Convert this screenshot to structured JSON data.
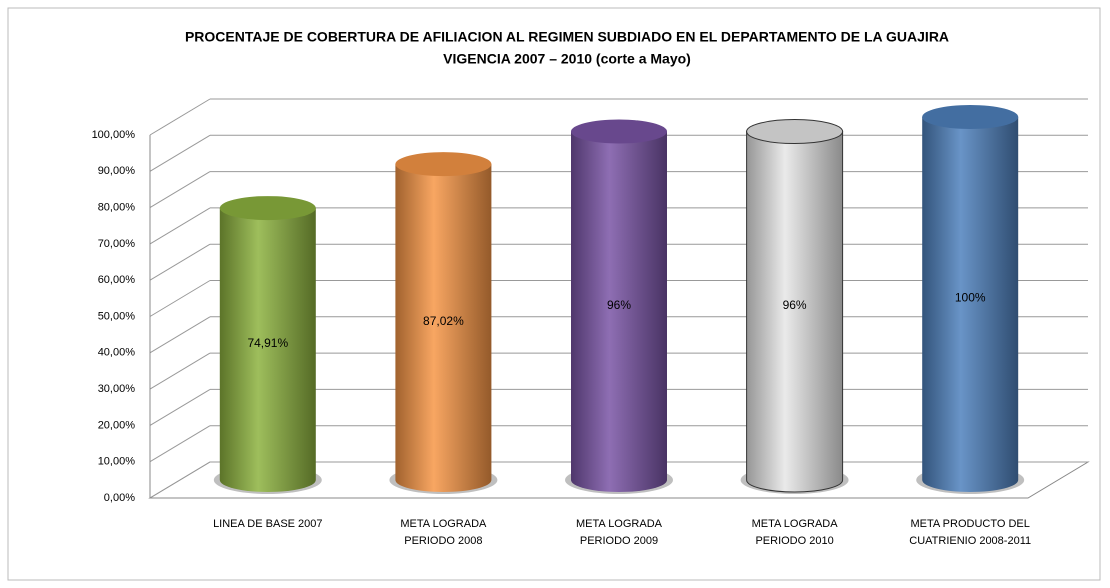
{
  "chart_data": {
    "type": "bar3d",
    "title": "PROCENTAJE DE COBERTURA DE AFILIACION AL REGIMEN SUBDIADO EN EL DEPARTAMENTO DE LA GUAJIRA",
    "subtitle": "VIGENCIA 2007 – 2010 (corte a Mayo)",
    "categories": [
      "LINEA DE BASE 2007",
      "META LOGRADA\nPERIODO 2008",
      "META LOGRADA\nPERIODO 2009",
      "META LOGRADA\nPERIODO 2010",
      "META PRODUCTO DEL\nCUATRIENIO 2008-2011"
    ],
    "values": [
      74.91,
      87.02,
      96,
      96,
      100
    ],
    "value_labels": [
      "74,91%",
      "87,02%",
      "96%",
      "96%",
      "100%"
    ],
    "colors": [
      "#8db33f",
      "#f79646",
      "#7a55a6",
      "#e6e6e6",
      "#4f81bd"
    ],
    "ylim": [
      0,
      100
    ],
    "yticks": [
      {
        "value": 0,
        "label": "0,00%"
      },
      {
        "value": 10,
        "label": "10,00%"
      },
      {
        "value": 20,
        "label": "20,00%"
      },
      {
        "value": 30,
        "label": "30,00%"
      },
      {
        "value": 40,
        "label": "40,00%"
      },
      {
        "value": 50,
        "label": "50,00%"
      },
      {
        "value": 60,
        "label": "60,00%"
      },
      {
        "value": 70,
        "label": "70,00%"
      },
      {
        "value": 80,
        "label": "80,00%"
      },
      {
        "value": 90,
        "label": "90,00%"
      },
      {
        "value": 100,
        "label": "100,00%"
      }
    ],
    "grid": true
  }
}
